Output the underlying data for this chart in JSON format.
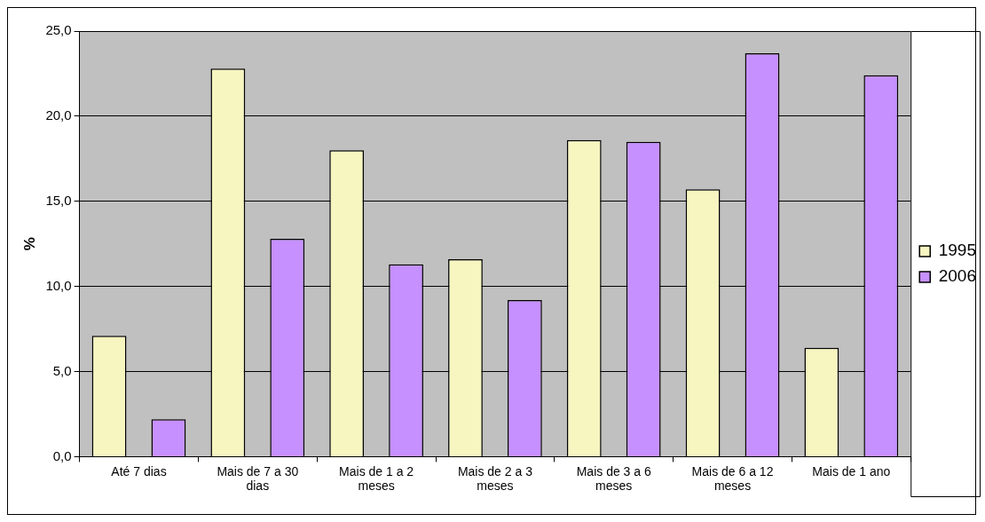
{
  "chart_data": {
    "type": "bar",
    "ylabel": "%",
    "categories": [
      "Até 7 dias",
      "Mais de 7 a 30 dias",
      "Mais de 1 a 2 meses",
      "Mais de 2 a 3 meses",
      "Mais de 3 a 6 meses",
      "Mais de 6 a 12 meses",
      "Mais de 1 ano"
    ],
    "series": [
      {
        "name": "1995",
        "color": "#f7f5c0",
        "values": [
          7.1,
          22.8,
          18.0,
          11.6,
          18.6,
          15.7,
          6.4
        ]
      },
      {
        "name": "2006",
        "color": "#c690ff",
        "values": [
          2.2,
          12.8,
          11.3,
          9.2,
          18.5,
          23.7,
          22.4
        ]
      }
    ],
    "ylim": [
      0,
      25
    ],
    "yticks": [
      {
        "value": 0,
        "label": "0,0"
      },
      {
        "value": 5,
        "label": "5,0"
      },
      {
        "value": 10,
        "label": "10,0"
      },
      {
        "value": 15,
        "label": "15,0"
      },
      {
        "value": 20,
        "label": "20,0"
      },
      {
        "value": 25,
        "label": "25,0"
      }
    ],
    "grid": "y",
    "legend": "right"
  }
}
